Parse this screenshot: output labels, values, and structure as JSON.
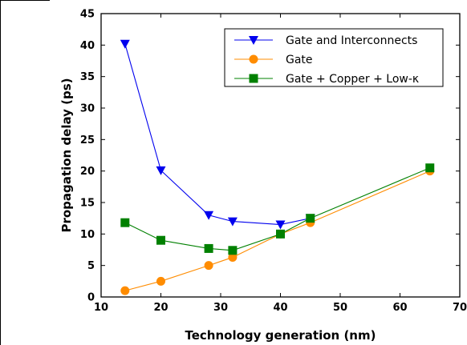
{
  "chart_data": {
    "type": "line",
    "title": "",
    "xlabel": "Technology generation (nm)",
    "ylabel": "Propagation delay (ps)",
    "xlim": [
      10,
      70
    ],
    "ylim": [
      0,
      45
    ],
    "xticks": [
      10,
      20,
      30,
      40,
      50,
      60,
      70
    ],
    "yticks": [
      0,
      5,
      10,
      15,
      20,
      25,
      30,
      35,
      40,
      45
    ],
    "grid": false,
    "legend_position": "top-right",
    "x": [
      14,
      20,
      28,
      32,
      40,
      45,
      65
    ],
    "series": [
      {
        "name": "Gate and Interconnects",
        "color": "#0000ee",
        "marker": "triangle-down",
        "values": [
          40.2,
          20.1,
          13.0,
          12.0,
          11.5,
          12.5,
          null
        ]
      },
      {
        "name": "Gate",
        "color": "#ff8c00",
        "marker": "circle",
        "values": [
          1.0,
          2.5,
          5.0,
          6.3,
          10.0,
          11.8,
          20.0
        ]
      },
      {
        "name": "Gate + Copper + Low-κ",
        "color": "#008000",
        "marker": "square",
        "values": [
          11.8,
          9.0,
          7.7,
          7.4,
          10.0,
          12.5,
          20.5
        ]
      }
    ]
  }
}
